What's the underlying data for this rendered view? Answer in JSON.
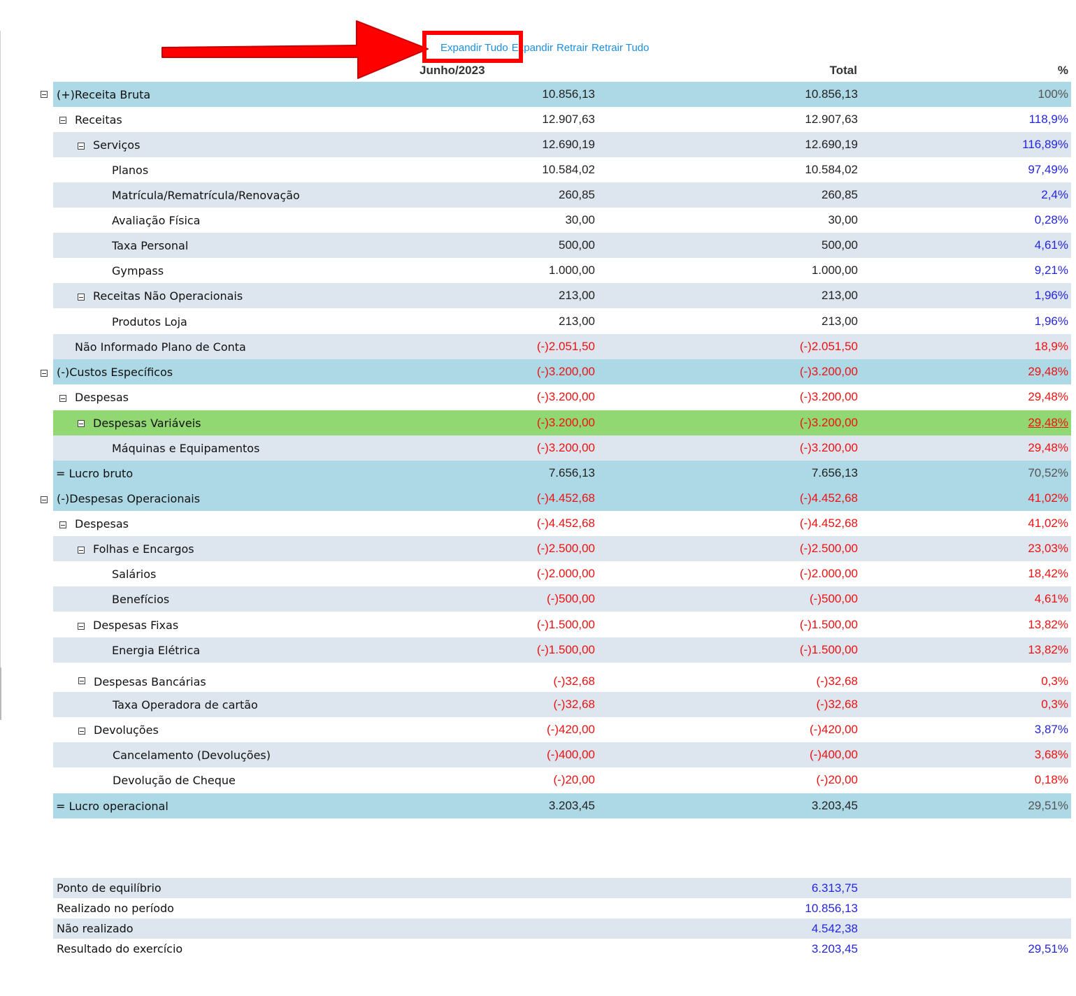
{
  "toolbar": {
    "expand_all": "Expandir Tudo",
    "expand": "Expandir",
    "collapse": "Retrair",
    "collapse_all": "Retrair Tudo"
  },
  "header": {
    "period": "Junho/2023",
    "total": "Total",
    "percent": "%"
  },
  "rows": [
    {
      "label": "(+)Receita Bruta",
      "period": "10.856,13",
      "total": "10.856,13",
      "pct": "100%"
    },
    {
      "label": "Receitas",
      "period": "12.907,63",
      "total": "12.907,63",
      "pct": "118,9%"
    },
    {
      "label": "Serviços",
      "period": "12.690,19",
      "total": "12.690,19",
      "pct": "116,89%"
    },
    {
      "label": "Planos",
      "period": "10.584,02",
      "total": "10.584,02",
      "pct": "97,49%"
    },
    {
      "label": "Matrícula/Rematrícula/Renovação",
      "period": "260,85",
      "total": "260,85",
      "pct": "2,4%"
    },
    {
      "label": "Avaliação Física",
      "period": "30,00",
      "total": "30,00",
      "pct": "0,28%"
    },
    {
      "label": "Taxa Personal",
      "period": "500,00",
      "total": "500,00",
      "pct": "4,61%"
    },
    {
      "label": "Gympass",
      "period": "1.000,00",
      "total": "1.000,00",
      "pct": "9,21%"
    },
    {
      "label": "Receitas Não Operacionais",
      "period": "213,00",
      "total": "213,00",
      "pct": "1,96%"
    },
    {
      "label": "Produtos Loja",
      "period": "213,00",
      "total": "213,00",
      "pct": "1,96%"
    },
    {
      "label": "Não Informado Plano de Conta",
      "period": "(-)2.051,50",
      "total": "(-)2.051,50",
      "pct": "18,9%"
    },
    {
      "label": "(-)Custos Específicos",
      "period": "(-)3.200,00",
      "total": "(-)3.200,00",
      "pct": "29,48%"
    },
    {
      "label": "Despesas",
      "period": "(-)3.200,00",
      "total": "(-)3.200,00",
      "pct": "29,48%"
    },
    {
      "label": "Despesas Variáveis",
      "period": "(-)3.200,00",
      "total": "(-)3.200,00",
      "pct": "29,48%"
    },
    {
      "label": "Máquinas e Equipamentos",
      "period": "(-)3.200,00",
      "total": "(-)3.200,00",
      "pct": "29,48%"
    },
    {
      "label": "= Lucro bruto",
      "period": "7.656,13",
      "total": "7.656,13",
      "pct": "70,52%"
    },
    {
      "label": "(-)Despesas Operacionais",
      "period": "(-)4.452,68",
      "total": "(-)4.452,68",
      "pct": "41,02%"
    },
    {
      "label": "Despesas",
      "period": "(-)4.452,68",
      "total": "(-)4.452,68",
      "pct": "41,02%"
    },
    {
      "label": "Folhas e Encargos",
      "period": "(-)2.500,00",
      "total": "(-)2.500,00",
      "pct": "23,03%"
    },
    {
      "label": "Salários",
      "period": "(-)2.000,00",
      "total": "(-)2.000,00",
      "pct": "18,42%"
    },
    {
      "label": "Benefícios",
      "period": "(-)500,00",
      "total": "(-)500,00",
      "pct": "4,61%"
    },
    {
      "label": "Despesas Fixas",
      "period": "(-)1.500,00",
      "total": "(-)1.500,00",
      "pct": "13,82%"
    },
    {
      "label": "Energia Elétrica",
      "period": "(-)1.500,00",
      "total": "(-)1.500,00",
      "pct": "13,82%"
    },
    {
      "label": "Despesas Bancárias",
      "period": "(-)32,68",
      "total": "(-)32,68",
      "pct": "0,3%"
    },
    {
      "label": "Taxa Operadora de cartão",
      "period": "(-)32,68",
      "total": "(-)32,68",
      "pct": "0,3%"
    },
    {
      "label": "Devoluções",
      "period": "(-)420,00",
      "total": "(-)420,00",
      "pct": "3,87%"
    },
    {
      "label": "Cancelamento (Devoluções)",
      "period": "(-)400,00",
      "total": "(-)400,00",
      "pct": "3,68%"
    },
    {
      "label": "Devolução de Cheque",
      "period": "(-)20,00",
      "total": "(-)20,00",
      "pct": "0,18%"
    },
    {
      "label": "= Lucro operacional",
      "period": "3.203,45",
      "total": "3.203,45",
      "pct": "29,51%"
    }
  ],
  "summary": [
    {
      "label": "Ponto de equilíbrio",
      "total": "6.313,75",
      "pct": ""
    },
    {
      "label": "Realizado no período",
      "total": "10.856,13",
      "pct": ""
    },
    {
      "label": "Não realizado",
      "total": "4.542,38",
      "pct": ""
    },
    {
      "label": "Resultado do exercício",
      "total": "3.203,45",
      "pct": "29,51%"
    }
  ],
  "colors": {
    "total_row_bg": "#add8e6",
    "stripe_bg": "#dde6ee",
    "highlight_bg": "#92d872",
    "negative": "#ee1111",
    "positive": "#2525dd",
    "link": "#1a8fe3",
    "annotation": "#ff0000"
  }
}
